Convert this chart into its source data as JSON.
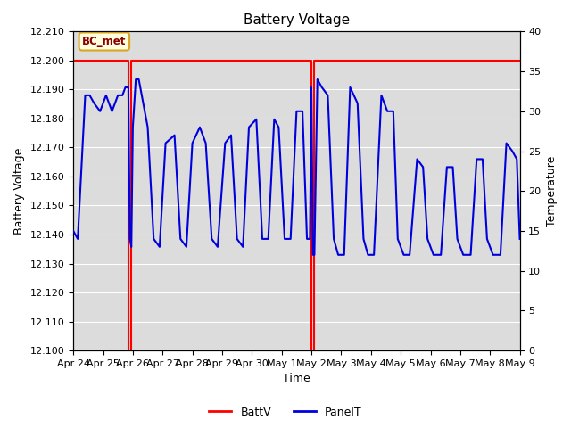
{
  "title": "Battery Voltage",
  "xlabel": "Time",
  "ylabel_left": "Battery Voltage",
  "ylabel_right": "Temperature",
  "xlim": [
    0,
    15
  ],
  "ylim_left": [
    12.1,
    12.21
  ],
  "ylim_right": [
    0,
    40
  ],
  "xtick_labels": [
    "Apr 24",
    "Apr 25",
    "Apr 26",
    "Apr 27",
    "Apr 28",
    "Apr 29",
    "Apr 30",
    "May 1",
    "May 2",
    "May 3",
    "May 4",
    "May 5",
    "May 6",
    "May 7",
    "May 8",
    "May 9"
  ],
  "xtick_positions": [
    0,
    1,
    2,
    3,
    4,
    5,
    6,
    7,
    8,
    9,
    10,
    11,
    12,
    13,
    14,
    15
  ],
  "ytick_left": [
    12.1,
    12.11,
    12.12,
    12.13,
    12.14,
    12.15,
    12.16,
    12.17,
    12.18,
    12.19,
    12.2,
    12.21
  ],
  "ytick_right": [
    0,
    5,
    10,
    15,
    20,
    25,
    30,
    35,
    40
  ],
  "bg_color": "#dcdcdc",
  "annotation_text": "BC_met",
  "battv_color": "#ff0000",
  "panelt_color": "#0000dd",
  "legend_items": [
    "BattV",
    "PanelT"
  ],
  "battv_x": [
    0.0,
    1.85,
    1.85,
    1.95,
    1.95,
    2.05,
    2.05,
    8.0,
    8.0,
    8.1,
    8.1,
    15.0
  ],
  "battv_y": [
    12.2,
    12.2,
    12.1,
    12.1,
    12.2,
    12.2,
    12.2,
    12.2,
    12.1,
    12.1,
    12.2,
    12.2
  ],
  "panelt_x": [
    0.0,
    0.15,
    0.4,
    0.55,
    0.7,
    0.9,
    1.1,
    1.3,
    1.5,
    1.65,
    1.75,
    1.85,
    1.9,
    1.95,
    2.0,
    2.1,
    2.2,
    2.5,
    2.7,
    2.9,
    3.1,
    3.4,
    3.6,
    3.8,
    4.0,
    4.25,
    4.45,
    4.65,
    4.85,
    5.1,
    5.3,
    5.5,
    5.7,
    5.9,
    6.15,
    6.35,
    6.55,
    6.75,
    6.9,
    7.1,
    7.3,
    7.5,
    7.7,
    7.85,
    7.95,
    8.0,
    8.05,
    8.1,
    8.2,
    8.35,
    8.55,
    8.75,
    8.9,
    9.1,
    9.3,
    9.55,
    9.75,
    9.9,
    10.1,
    10.35,
    10.55,
    10.75,
    10.9,
    11.1,
    11.3,
    11.55,
    11.75,
    11.9,
    12.1,
    12.35,
    12.55,
    12.75,
    12.9,
    13.1,
    13.35,
    13.55,
    13.75,
    13.9,
    14.1,
    14.35,
    14.55,
    14.75,
    14.9,
    15.0
  ],
  "panelt_y": [
    15,
    14,
    32,
    32,
    31,
    30,
    32,
    30,
    32,
    32,
    33,
    33,
    14,
    13,
    28,
    34,
    34,
    28,
    14,
    13,
    26,
    27,
    14,
    13,
    26,
    28,
    26,
    14,
    13,
    26,
    27,
    14,
    13,
    28,
    29,
    14,
    14,
    29,
    28,
    14,
    14,
    30,
    30,
    14,
    14,
    33,
    12,
    12,
    34,
    33,
    32,
    14,
    12,
    12,
    33,
    31,
    14,
    12,
    12,
    32,
    30,
    30,
    14,
    12,
    12,
    24,
    23,
    14,
    12,
    12,
    23,
    23,
    14,
    12,
    12,
    24,
    24,
    14,
    12,
    12,
    26,
    25,
    24,
    14
  ]
}
